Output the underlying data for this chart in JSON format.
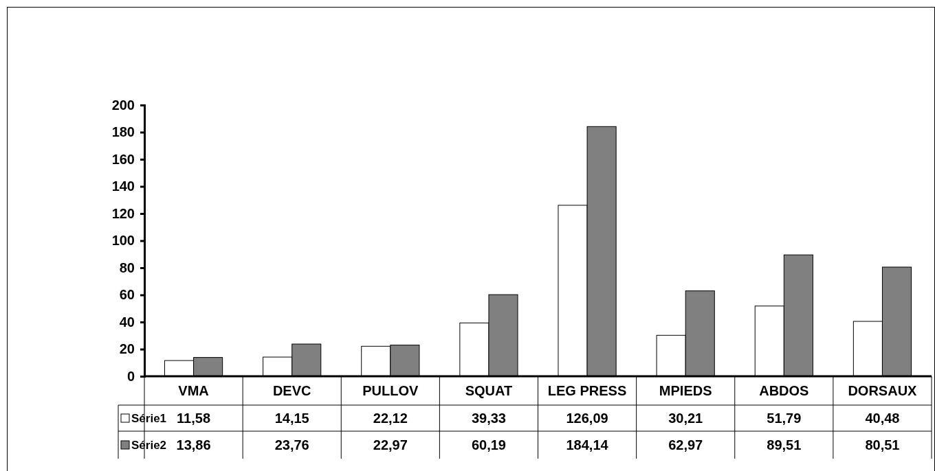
{
  "chart_data": {
    "type": "bar",
    "categories": [
      "VMA",
      "DEVC",
      "PULLOV",
      "SQUAT",
      "LEG PRESS",
      "MPIEDS",
      "ABDOS",
      "DORSAUX"
    ],
    "series": [
      {
        "name": "Série1",
        "color": "#ffffff",
        "values": [
          11.58,
          14.15,
          22.12,
          39.33,
          126.09,
          30.21,
          51.79,
          40.48
        ],
        "value_labels": [
          "11,58",
          "14,15",
          "22,12",
          "39,33",
          "126,09",
          "30,21",
          "51,79",
          "40,48"
        ]
      },
      {
        "name": "Série2",
        "color": "#808080",
        "values": [
          13.86,
          23.76,
          22.97,
          60.19,
          184.14,
          62.97,
          89.51,
          80.51
        ],
        "value_labels": [
          "13,86",
          "23,76",
          "22,97",
          "60,19",
          "184,14",
          "62,97",
          "89,51",
          "80,51"
        ]
      }
    ],
    "ylim": [
      0,
      200
    ],
    "yticks": [
      0,
      20,
      40,
      60,
      80,
      100,
      120,
      140,
      160,
      180,
      200
    ],
    "grid": false,
    "legend": "bottom left"
  }
}
